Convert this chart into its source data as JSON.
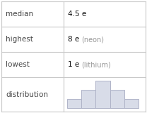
{
  "rows": [
    {
      "label": "median",
      "value": "4.5 e",
      "note": ""
    },
    {
      "label": "highest",
      "value": "8 e",
      "note": "(neon)"
    },
    {
      "label": "lowest",
      "value": "1 e",
      "note": "(lithium)"
    },
    {
      "label": "distribution",
      "value": "",
      "note": ""
    }
  ],
  "bar_heights": [
    1,
    2,
    3,
    2,
    1
  ],
  "bar_color": "#d8dce8",
  "bar_edge_color": "#b0b4c8",
  "table_line_color": "#c8c8c8",
  "bg_color": "#ffffff",
  "label_fontsize": 7.5,
  "value_fontsize": 7.5,
  "note_fontsize": 7.0,
  "label_color": "#444444",
  "value_color": "#111111",
  "note_color": "#999999"
}
